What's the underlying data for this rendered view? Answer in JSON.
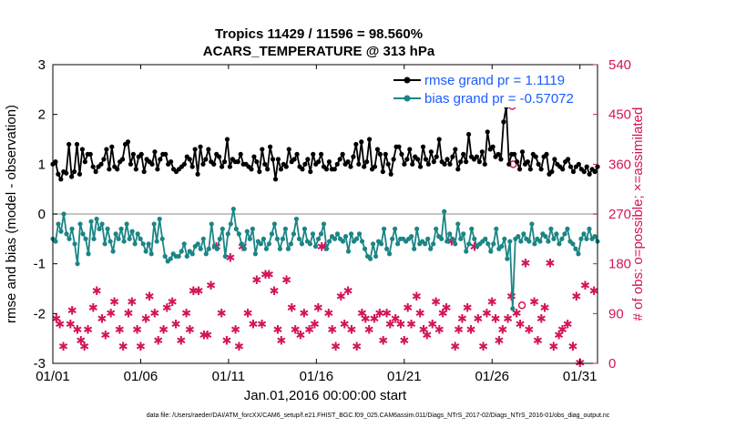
{
  "colors": {
    "rmse": "#000000",
    "bias": "#1b8585",
    "obs": "#d4145a",
    "legend_text": "#1a5cff",
    "zero_line": "#b0b0b0"
  },
  "chart_data": {
    "type": "line",
    "title": "Tropics 11429 / 11596 = 98.560%",
    "subtitle": "ACARS_TEMPERATURE @ 313 hPa",
    "xlabel": "Jan.01,2016 00:00:00 start",
    "ylabel_left": "rmse and bias (model - observation)",
    "ylabel_right": "# of obs: o=possible; ×=assimilated",
    "xlim": [
      1,
      32
    ],
    "ylim_left": [
      -3,
      3
    ],
    "ylim_right": [
      0,
      540
    ],
    "x_tick_values": [
      1,
      6,
      11,
      16,
      21,
      26,
      31
    ],
    "x_tick_labels": [
      "01/01",
      "01/06",
      "01/11",
      "01/16",
      "01/21",
      "01/26",
      "01/31"
    ],
    "y_left_ticks": [
      "-3",
      "-2",
      "-1",
      "0",
      "1",
      "2",
      "3"
    ],
    "y_right_ticks": [
      "0",
      "90",
      "180",
      "270",
      "360",
      "450",
      "540"
    ],
    "legend": [
      "rmse grand pr = 1.1119",
      "bias grand pr = -0.57072"
    ],
    "series": [
      {
        "name": "rmse",
        "values": [
          1.0,
          1.05,
          0.8,
          0.7,
          0.85,
          0.82,
          1.4,
          0.75,
          0.85,
          1.4,
          0.8,
          1.3,
          1.05,
          1.2,
          1.2,
          0.95,
          0.85,
          0.95,
          1.0,
          1.1,
          1.3,
          0.9,
          1.35,
          0.95,
          0.9,
          1.05,
          1.1,
          1.4,
          1.45,
          1.0,
          1.2,
          0.9,
          1.15,
          1.2,
          0.85,
          1.1,
          1.05,
          1.0,
          1.25,
          0.9,
          1.1,
          1.2,
          1.2,
          1.0,
          1.05,
          0.9,
          0.85,
          0.9,
          0.95,
          1.0,
          1.15,
          1.1,
          0.95,
          1.3,
          0.8,
          1.35,
          1.0,
          1.1,
          1.3,
          1.05,
          1.0,
          1.2,
          1.15,
          0.95,
          1.05,
          1.5,
          0.95,
          1.1,
          1.05,
          1.05,
          1.2,
          1.0,
          1.0,
          0.95,
          0.9,
          1.15,
          1.05,
          0.85,
          1.3,
          1.0,
          0.9,
          1.35,
          1.1,
          0.7,
          1.1,
          0.9,
          1.0,
          0.95,
          1.3,
          1.05,
          1.1,
          1.2,
          0.95,
          0.9,
          1.0,
          1.1,
          0.85,
          1.2,
          1.0,
          1.05,
          1.2,
          0.95,
          0.9,
          1.05,
          0.9,
          0.9,
          1.0,
          1.1,
          1.2,
          1.0,
          1.05,
          0.95,
          1.15,
          1.4,
          1.0,
          1.45,
          0.95,
          1.05,
          1.5,
          0.9,
          0.95,
          1.3,
          1.2,
          0.85,
          1.2,
          1.0,
          0.8,
          1.1,
          1.35,
          1.35,
          1.2,
          1.0,
          1.1,
          1.3,
          1.0,
          1.15,
          1.1,
          0.95,
          1.35,
          1.1,
          1.0,
          1.25,
          1.05,
          1.15,
          1.5,
          1.05,
          1.0,
          1.1,
          1.0,
          1.15,
          1.3,
          0.9,
          1.05,
          1.2,
          1.05,
          1.6,
          1.15,
          1.1,
          1.15,
          1.05,
          1.25,
          1.0,
          1.65,
          1.3,
          1.35,
          1.15,
          1.2,
          1.1,
          1.85,
          2.15,
          1.0,
          1.2,
          1.2,
          1.05,
          0.9,
          1.25,
          1.0,
          1.05,
          0.9,
          1.2,
          1.15,
          1.0,
          0.9,
          1.15,
          1.2,
          0.8,
          0.85,
          1.1,
          1.0,
          0.95,
          0.9,
          1.05,
          1.1,
          0.95,
          0.85,
          0.95,
          1.0,
          0.9,
          0.85,
          0.95,
          0.8,
          0.9,
          0.85,
          0.95
        ]
      },
      {
        "name": "bias",
        "values": [
          -0.5,
          -0.55,
          -0.2,
          -0.35,
          0.0,
          -0.4,
          -0.5,
          -0.3,
          -0.6,
          -1.0,
          -0.2,
          -0.4,
          -0.5,
          -0.8,
          -0.15,
          -0.5,
          -0.1,
          -0.3,
          -0.2,
          -0.6,
          -0.3,
          -0.55,
          -0.75,
          -0.4,
          -0.5,
          -0.3,
          -0.55,
          -0.2,
          -0.5,
          -0.35,
          -0.6,
          -0.4,
          -0.5,
          -0.6,
          -0.75,
          -0.6,
          -0.8,
          -0.2,
          -0.55,
          -0.1,
          -0.5,
          -0.85,
          -0.95,
          -0.9,
          -0.8,
          -0.85,
          -0.85,
          -0.75,
          -0.6,
          -0.85,
          -0.75,
          -0.8,
          -0.65,
          -0.6,
          -0.7,
          -0.5,
          -0.8,
          -0.7,
          -0.2,
          -0.65,
          -0.7,
          -0.5,
          -0.3,
          -0.85,
          -0.4,
          -0.2,
          0.1,
          -0.3,
          -0.4,
          -0.6,
          -0.7,
          -0.35,
          -0.5,
          -0.3,
          -0.8,
          -0.55,
          -0.6,
          -0.5,
          -0.7,
          -0.6,
          -0.4,
          -0.2,
          -0.5,
          -0.7,
          -0.5,
          -0.3,
          -0.7,
          -0.6,
          -0.4,
          -0.1,
          -0.5,
          -0.6,
          -0.3,
          -0.55,
          -0.6,
          -0.4,
          -0.65,
          -0.5,
          -0.4,
          -0.2,
          -0.7,
          -0.55,
          -0.45,
          -0.5,
          -0.4,
          -0.5,
          -0.55,
          -0.45,
          -0.75,
          -0.4,
          -0.55,
          -0.5,
          -0.4,
          -0.55,
          -0.7,
          -0.85,
          -0.9,
          -0.6,
          -0.85,
          -0.55,
          -0.6,
          -0.3,
          -0.7,
          -0.8,
          -0.5,
          -0.3,
          -0.6,
          -0.5,
          -0.5,
          -0.55,
          -0.5,
          -0.45,
          -0.7,
          -0.3,
          -0.6,
          -0.55,
          -0.6,
          -0.5,
          -0.7,
          -0.6,
          -0.3,
          -0.45,
          -0.5,
          0.05,
          -0.55,
          -0.4,
          -0.5,
          -0.6,
          -0.2,
          -0.5,
          -0.4,
          -0.75,
          -0.6,
          -0.3,
          -0.5,
          -0.65,
          -0.6,
          -0.55,
          -0.5,
          -0.6,
          -0.75,
          -0.6,
          -0.3,
          -0.7,
          -0.65,
          -0.5,
          -0.9,
          -0.55,
          -1.9,
          -0.5,
          -0.45,
          -0.55,
          -0.4,
          -0.5,
          -0.55,
          -0.2,
          -0.6,
          -0.5,
          -0.55,
          -0.4,
          -0.45,
          -0.55,
          -0.3,
          -0.5,
          -0.4,
          -0.6,
          -0.5,
          -0.4,
          -0.3,
          -0.55,
          -0.6,
          -0.7,
          -0.8,
          -0.5,
          -0.4,
          -0.5,
          -0.3,
          -0.5,
          -0.45,
          -0.55
        ]
      }
    ],
    "obs_assimilated": [
      [
        1.2,
        80
      ],
      [
        1.4,
        70
      ],
      [
        1.6,
        30
      ],
      [
        2.0,
        70
      ],
      [
        2.1,
        95
      ],
      [
        2.4,
        60
      ],
      [
        2.6,
        40
      ],
      [
        2.8,
        30
      ],
      [
        3.0,
        60
      ],
      [
        3.3,
        100
      ],
      [
        3.5,
        130
      ],
      [
        3.8,
        80
      ],
      [
        4.0,
        50
      ],
      [
        4.3,
        90
      ],
      [
        4.5,
        110
      ],
      [
        4.8,
        60
      ],
      [
        5.0,
        30
      ],
      [
        5.3,
        90
      ],
      [
        5.5,
        110
      ],
      [
        5.8,
        60
      ],
      [
        6.0,
        30
      ],
      [
        6.3,
        80
      ],
      [
        6.5,
        120
      ],
      [
        6.8,
        90
      ],
      [
        7.0,
        40
      ],
      [
        7.3,
        60
      ],
      [
        7.5,
        100
      ],
      [
        7.8,
        110
      ],
      [
        8.0,
        70
      ],
      [
        8.3,
        40
      ],
      [
        8.6,
        90
      ],
      [
        8.8,
        60
      ],
      [
        9.0,
        130
      ],
      [
        9.3,
        130
      ],
      [
        9.6,
        50
      ],
      [
        9.8,
        50
      ],
      [
        10.0,
        140
      ],
      [
        10.3,
        210
      ],
      [
        10.6,
        90
      ],
      [
        10.9,
        40
      ],
      [
        11.1,
        190
      ],
      [
        11.4,
        60
      ],
      [
        11.6,
        30
      ],
      [
        11.8,
        210
      ],
      [
        12.1,
        90
      ],
      [
        12.4,
        70
      ],
      [
        12.6,
        150
      ],
      [
        12.9,
        70
      ],
      [
        13.1,
        160
      ],
      [
        13.3,
        160
      ],
      [
        13.6,
        130
      ],
      [
        13.8,
        60
      ],
      [
        14.0,
        40
      ],
      [
        14.3,
        150
      ],
      [
        14.6,
        100
      ],
      [
        14.8,
        60
      ],
      [
        15.1,
        50
      ],
      [
        15.3,
        90
      ],
      [
        15.6,
        60
      ],
      [
        15.9,
        70
      ],
      [
        16.1,
        100
      ],
      [
        16.3,
        210
      ],
      [
        16.5,
        210
      ],
      [
        16.7,
        90
      ],
      [
        16.9,
        60
      ],
      [
        17.1,
        30
      ],
      [
        17.4,
        120
      ],
      [
        17.6,
        70
      ],
      [
        17.8,
        130
      ],
      [
        18.0,
        60
      ],
      [
        18.3,
        30
      ],
      [
        18.6,
        90
      ],
      [
        18.8,
        80
      ],
      [
        19.0,
        60
      ],
      [
        19.3,
        80
      ],
      [
        19.6,
        90
      ],
      [
        19.8,
        40
      ],
      [
        20.0,
        90
      ],
      [
        20.2,
        70
      ],
      [
        20.5,
        80
      ],
      [
        20.8,
        70
      ],
      [
        21.0,
        40
      ],
      [
        21.2,
        100
      ],
      [
        21.4,
        70
      ],
      [
        21.7,
        120
      ],
      [
        21.9,
        90
      ],
      [
        22.1,
        60
      ],
      [
        22.3,
        50
      ],
      [
        22.6,
        70
      ],
      [
        22.8,
        110
      ],
      [
        23.0,
        60
      ],
      [
        23.2,
        90
      ],
      [
        23.4,
        100
      ],
      [
        23.7,
        220
      ],
      [
        23.9,
        30
      ],
      [
        24.1,
        60
      ],
      [
        24.3,
        80
      ],
      [
        24.6,
        100
      ],
      [
        24.8,
        60
      ],
      [
        25.0,
        210
      ],
      [
        25.2,
        80
      ],
      [
        25.5,
        30
      ],
      [
        25.7,
        90
      ],
      [
        26.0,
        110
      ],
      [
        26.2,
        80
      ],
      [
        26.4,
        40
      ],
      [
        26.6,
        60
      ],
      [
        26.9,
        80
      ],
      [
        27.1,
        120
      ],
      [
        27.4,
        90
      ],
      [
        27.6,
        70
      ],
      [
        27.9,
        180
      ],
      [
        28.1,
        60
      ],
      [
        28.4,
        110
      ],
      [
        28.6,
        40
      ],
      [
        28.8,
        80
      ],
      [
        29.0,
        100
      ],
      [
        29.3,
        180
      ],
      [
        29.5,
        30
      ],
      [
        29.8,
        50
      ],
      [
        30.0,
        60
      ],
      [
        30.3,
        70
      ],
      [
        30.6,
        30
      ],
      [
        30.8,
        120
      ],
      [
        31.0,
        0
      ],
      [
        31.3,
        140
      ],
      [
        31.8,
        130
      ]
    ],
    "obs_possible": [
      [
        27.15,
        465
      ],
      [
        27.2,
        360
      ],
      [
        27.7,
        105
      ]
    ]
  },
  "footer": {
    "data_file": "data file: /Users/raeder/DAI/ATM_forcXX/CAM6_setup/f.e21.FHIST_BGC.f09_025.CAM6assim.011/Diags_NTrS_2017-02/Diags_NTrS_2016-01/obs_diag_output.nc"
  }
}
